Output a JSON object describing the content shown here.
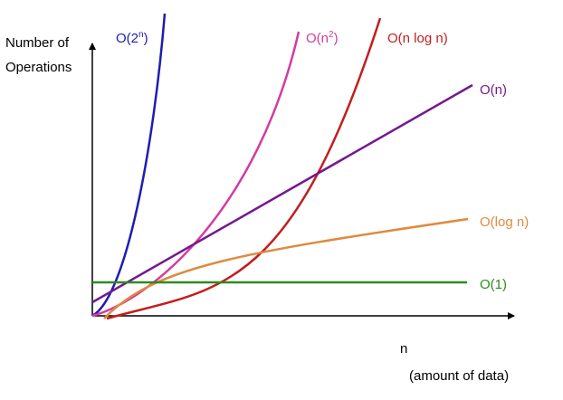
{
  "chart_data": {
    "type": "line",
    "title": "",
    "ylabel_lines": [
      "Number of",
      "Operations"
    ],
    "xlabel_lines": [
      "n",
      "(amount of data)"
    ],
    "axis_color": "#000000",
    "grid": false,
    "legend": "none",
    "series": [
      {
        "name": "O(2ⁿ)",
        "color": "#1d1db3",
        "key": "exp",
        "labels": {
          "base": "O(2",
          "sup": "n",
          "close": ")"
        }
      },
      {
        "name": "O(n²)",
        "color": "#d43aa3",
        "key": "quad",
        "labels": {
          "base": "O(n",
          "sup": "2",
          "close": ")"
        }
      },
      {
        "name": "O(n log n)",
        "color": "#c21e1e",
        "key": "nlogn",
        "labels": {
          "base": "O(n log n)",
          "sup": "",
          "close": ""
        }
      },
      {
        "name": "O(n)",
        "color": "#74198f",
        "key": "linear",
        "labels": {
          "base": "O(n)",
          "sup": "",
          "close": ""
        }
      },
      {
        "name": "O(log n)",
        "color": "#e08a3e",
        "key": "log",
        "labels": {
          "base": "O(log n)",
          "sup": "",
          "close": ""
        }
      },
      {
        "name": "O(1)",
        "color": "#2f8a1f",
        "key": "const",
        "labels": {
          "base": "O(1)",
          "sup": "",
          "close": ""
        }
      }
    ]
  }
}
